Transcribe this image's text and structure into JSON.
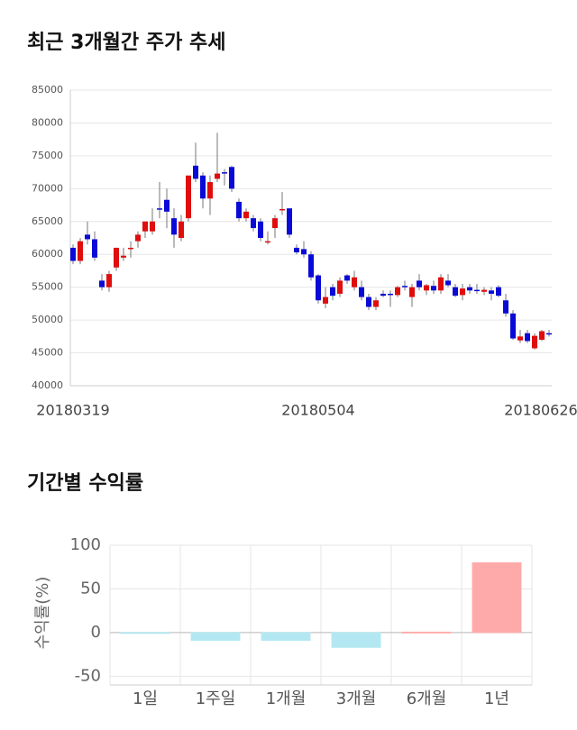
{
  "chart_data": [
    {
      "type": "candlestick",
      "title": "최근 3개월간 주가 추세",
      "categories": [
        "20180319",
        null,
        null,
        null,
        null,
        null,
        null,
        null,
        null,
        null,
        null,
        null,
        null,
        null,
        null,
        null,
        null,
        null,
        null,
        null,
        null,
        null,
        null,
        null,
        null,
        null,
        null,
        null,
        null,
        null,
        null,
        null,
        null,
        null,
        "20180504",
        null,
        null,
        null,
        null,
        null,
        null,
        null,
        null,
        null,
        null,
        null,
        null,
        null,
        null,
        null,
        null,
        null,
        null,
        null,
        null,
        null,
        null,
        null,
        null,
        null,
        null,
        null,
        null,
        null,
        null,
        null,
        "20180626"
      ],
      "open": [
        61000,
        59000,
        63000,
        62300,
        56000,
        55000,
        58000,
        59500,
        60800,
        62000,
        63500,
        63500,
        67000,
        68300,
        65500,
        62500,
        65500,
        73500,
        72000,
        68500,
        71500,
        72500,
        73300,
        68000,
        65500,
        65500,
        65000,
        61800,
        64000,
        66700,
        67000,
        61000,
        60800,
        60000,
        56800,
        52500,
        55000,
        54000,
        56800,
        55000,
        55000,
        53500,
        52000,
        54000,
        54000,
        53800,
        55200,
        53500,
        56000,
        54500,
        55200,
        54500,
        56000,
        55000,
        53800,
        55000,
        54600,
        54300,
        54500,
        55000,
        53000,
        51000,
        46900,
        48000,
        45700,
        47000,
        48000
      ],
      "high": [
        61500,
        62500,
        65000,
        63500,
        57000,
        57500,
        61000,
        61000,
        62000,
        63500,
        65000,
        67000,
        71000,
        70000,
        67000,
        66000,
        72000,
        77000,
        72500,
        72000,
        78500,
        73000,
        73500,
        68500,
        67000,
        66000,
        65500,
        63500,
        66000,
        69500,
        67000,
        61500,
        62000,
        60500,
        57000,
        55000,
        55500,
        56500,
        57000,
        57500,
        56000,
        54000,
        53500,
        54500,
        54500,
        55200,
        56000,
        55500,
        57000,
        55500,
        56000,
        57000,
        57000,
        55500,
        55500,
        55500,
        55500,
        55000,
        55000,
        55300,
        54000,
        51500,
        48500,
        48500,
        48000,
        48500,
        48500
      ],
      "low": [
        58500,
        58500,
        61500,
        59000,
        54500,
        54300,
        57500,
        59000,
        59500,
        61000,
        62500,
        63000,
        65500,
        64000,
        61000,
        62000,
        65000,
        71000,
        67000,
        66000,
        71000,
        70500,
        69500,
        65000,
        65000,
        63500,
        62000,
        61500,
        62500,
        66000,
        62500,
        60000,
        59500,
        56000,
        52500,
        51800,
        53000,
        53500,
        55500,
        54500,
        53000,
        51500,
        51500,
        53500,
        52000,
        53500,
        54500,
        52000,
        54500,
        53800,
        54000,
        54000,
        55000,
        53500,
        53000,
        54000,
        54000,
        53800,
        53000,
        53500,
        50500,
        47000,
        46500,
        46500,
        45500,
        46800,
        47500
      ],
      "close": [
        59000,
        62000,
        62300,
        59500,
        55000,
        57000,
        61000,
        59800,
        61000,
        63000,
        65000,
        65000,
        66800,
        66500,
        63000,
        65000,
        72000,
        71500,
        68500,
        71000,
        72300,
        72300,
        70000,
        65500,
        66500,
        64000,
        62500,
        62000,
        65500,
        66900,
        63000,
        60300,
        60000,
        56500,
        53000,
        53500,
        53700,
        56000,
        56000,
        56500,
        53500,
        52000,
        53000,
        53700,
        53900,
        55000,
        55000,
        55000,
        55000,
        55300,
        54500,
        56500,
        55300,
        53700,
        54800,
        54500,
        54400,
        54600,
        54000,
        53700,
        51000,
        47200,
        47500,
        46800,
        47600,
        48300,
        47800
      ],
      "up_color": "#e00d0d",
      "down_color": "#0a0ad8",
      "ylim": [
        40000,
        85000
      ],
      "yticks": [
        40000,
        45000,
        50000,
        55000,
        60000,
        65000,
        70000,
        75000,
        80000,
        85000
      ],
      "grid": true
    },
    {
      "type": "bar",
      "title": "기간별 수익률",
      "ylabel": "수익률(%)",
      "categories": [
        "1일",
        "1주일",
        "1개월",
        "3개월",
        "6개월",
        "1년"
      ],
      "values": [
        -0.5,
        -9,
        -9,
        -17,
        0.5,
        80
      ],
      "colors": [
        "#b3e8f2",
        "#b3e8f2",
        "#b3e8f2",
        "#b3e8f2",
        "#ffaaaa",
        "#ffaaaa"
      ],
      "ylim": [
        -60,
        100
      ],
      "yticks": [
        -50,
        0,
        50,
        100
      ],
      "grid": true
    }
  ]
}
